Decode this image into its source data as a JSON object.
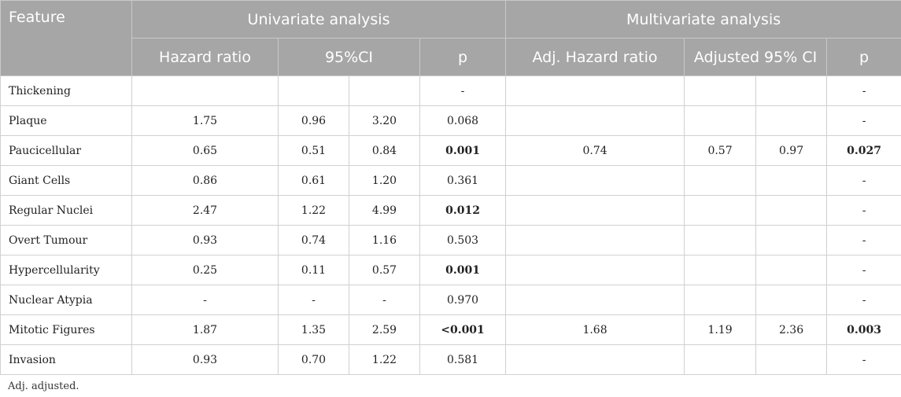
{
  "headers": {
    "feature": "Feature",
    "univariate": "Univariate analysis",
    "multivariate": "Multivariate analysis",
    "hazard_ratio": "Hazard ratio",
    "ci": "95%CI",
    "p": "p",
    "adj_hazard_ratio": "Adj. Hazard ratio",
    "adj_ci": "Adjusted 95% CI",
    "p2": "p"
  },
  "rows": [
    {
      "feature": "Thickening",
      "hr": "",
      "ci_low": "",
      "ci_high": "",
      "p": "-",
      "p_bold": false,
      "adj_hr": "",
      "adj_low": "",
      "adj_high": "",
      "adj_p": "-",
      "adj_p_bold": false
    },
    {
      "feature": "Plaque",
      "hr": "1.75",
      "ci_low": "0.96",
      "ci_high": "3.20",
      "p": "0.068",
      "p_bold": false,
      "adj_hr": "",
      "adj_low": "",
      "adj_high": "",
      "adj_p": "-",
      "adj_p_bold": false
    },
    {
      "feature": "Paucicellular",
      "hr": "0.65",
      "ci_low": "0.51",
      "ci_high": "0.84",
      "p": "0.001",
      "p_bold": true,
      "adj_hr": "0.74",
      "adj_low": "0.57",
      "adj_high": "0.97",
      "adj_p": "0.027",
      "adj_p_bold": true
    },
    {
      "feature": "Giant Cells",
      "hr": "0.86",
      "ci_low": "0.61",
      "ci_high": "1.20",
      "p": "0.361",
      "p_bold": false,
      "adj_hr": "",
      "adj_low": "",
      "adj_high": "",
      "adj_p": "-",
      "adj_p_bold": false
    },
    {
      "feature": "Regular Nuclei",
      "hr": "2.47",
      "ci_low": "1.22",
      "ci_high": "4.99",
      "p": "0.012",
      "p_bold": true,
      "adj_hr": "",
      "adj_low": "",
      "adj_high": "",
      "adj_p": "-",
      "adj_p_bold": false
    },
    {
      "feature": "Overt Tumour",
      "hr": "0.93",
      "ci_low": "0.74",
      "ci_high": "1.16",
      "p": "0.503",
      "p_bold": false,
      "adj_hr": "",
      "adj_low": "",
      "adj_high": "",
      "adj_p": "-",
      "adj_p_bold": false
    },
    {
      "feature": "Hypercellularity",
      "hr": "0.25",
      "ci_low": "0.11",
      "ci_high": "0.57",
      "p": "0.001",
      "p_bold": true,
      "adj_hr": "",
      "adj_low": "",
      "adj_high": "",
      "adj_p": "-",
      "adj_p_bold": false
    },
    {
      "feature": "Nuclear Atypia",
      "hr": "-",
      "ci_low": "-",
      "ci_high": "-",
      "p": "0.970",
      "p_bold": false,
      "adj_hr": "",
      "adj_low": "",
      "adj_high": "",
      "adj_p": "-",
      "adj_p_bold": false
    },
    {
      "feature": "Mitotic Figures",
      "hr": "1.87",
      "ci_low": "1.35",
      "ci_high": "2.59",
      "p": "<0.001",
      "p_bold": true,
      "adj_hr": "1.68",
      "adj_low": "1.19",
      "adj_high": "2.36",
      "adj_p": "0.003",
      "adj_p_bold": true
    },
    {
      "feature": "Invasion",
      "hr": "0.93",
      "ci_low": "0.70",
      "ci_high": "1.22",
      "p": "0.581",
      "p_bold": false,
      "adj_hr": "",
      "adj_low": "",
      "adj_high": "",
      "adj_p": "-",
      "adj_p_bold": false
    }
  ],
  "footnote": "Adj. adjusted."
}
